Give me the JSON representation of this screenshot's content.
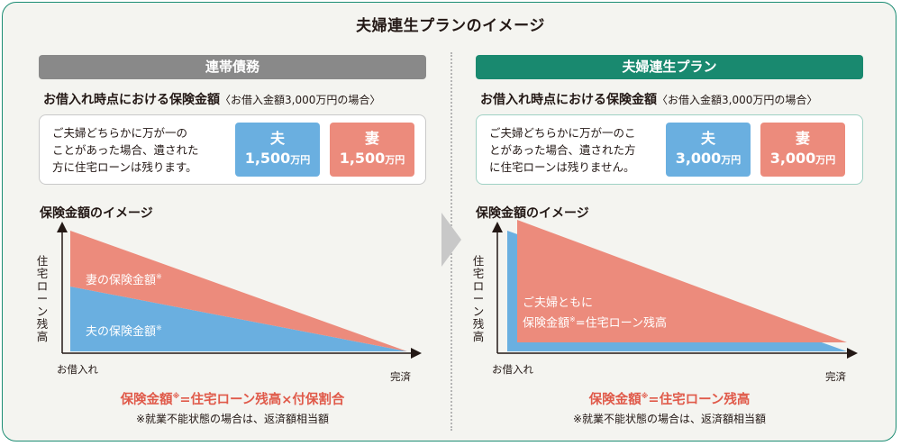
{
  "title": "夫婦連生プランのイメージ",
  "left": {
    "banner": "連帯債務",
    "subhead": "お借入れ時点における保険金額",
    "subhead_note": "〈お借入金額3,000万円の場合〉",
    "card_lines": [
      "ご夫婦どちらかに万が一の",
      "ことがあった場合、遺された",
      "方に住宅ローンは残ります。"
    ],
    "husband": {
      "label": "夫",
      "amount": "1,500",
      "unit": "万円"
    },
    "wife": {
      "label": "妻",
      "amount": "1,500",
      "unit": "万円"
    },
    "chart_title": "保険金額のイメージ",
    "wife_area_label": "妻の保険金額",
    "husband_area_label": "夫の保険金額",
    "asterisk": "※",
    "formula_pre": "保険金額",
    "formula_post": "=住宅ローン残高×付保割合",
    "footnote": "※就業不能状態の場合は、返済額相当額"
  },
  "right": {
    "banner": "夫婦連生プラン",
    "subhead": "お借入れ時点における保険金額",
    "subhead_note": "〈お借入金額3,000万円の場合〉",
    "card_lines": [
      "ご夫婦どちらかに万が一のこ",
      "とがあった場合、遺された方",
      "に住宅ローンは残りません。"
    ],
    "husband": {
      "label": "夫",
      "amount": "3,000",
      "unit": "万円"
    },
    "wife": {
      "label": "妻",
      "amount": "3,000",
      "unit": "万円"
    },
    "chart_title": "保険金額のイメージ",
    "area_label_line1": "ご夫婦ともに",
    "area_label_pre": "保険金額",
    "area_label_post": "=住宅ローン残高",
    "asterisk": "※",
    "formula_pre": "保険金額",
    "formula_post": "=住宅ローン残高",
    "footnote": "※就業不能状態の場合は、返済額相当額"
  },
  "axis": {
    "y_label": "住宅ローン残高",
    "x_start": "お借入れ",
    "x_end": "完済"
  },
  "colors": {
    "green": "#19896f",
    "gray": "#898989",
    "blue": "#6aafe0",
    "red": "#ec8b7c",
    "formula": "#e05a4a"
  }
}
